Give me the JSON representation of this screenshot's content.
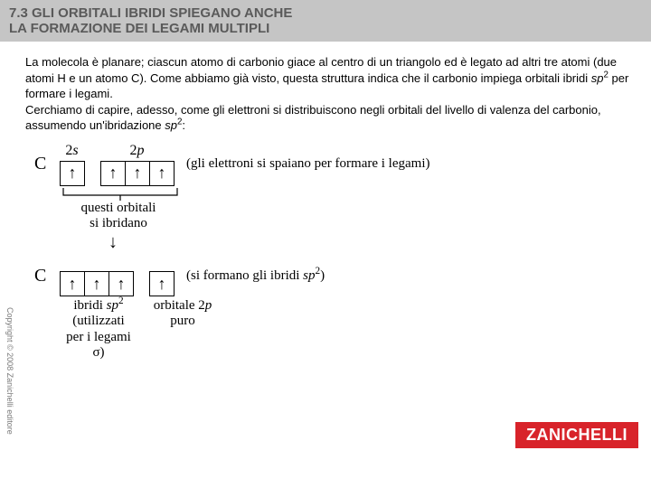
{
  "header": {
    "title_line1": "7.3 GLI ORBITALI IBRIDI SPIEGANO ANCHE",
    "title_line2": "LA FORMAZIONE DEI LEGAMI MULTIPLI"
  },
  "paragraph": {
    "p1": "La molecola è planare; ciascun atomo di carbonio giace al centro di un triangolo ed è legato ad altri tre atomi (due atomi H e un atomo C). Come abbiamo già visto, questa struttura indica che il carbonio impiega orbitali ibridi ",
    "sp2_a": "sp",
    "exp_a": "2",
    "p2": " per formare i legami.",
    "p3": "Cerchiamo di capire, adesso, come gli elettroni si distribuiscono negli orbitali del livello di valenza del carbonio, assumendo un'ibridazione ",
    "sp2_b": "sp",
    "exp_b": "2",
    "p4": ":"
  },
  "diagram": {
    "row1": {
      "atom": "C",
      "label_2s": "2s",
      "label_2p": "2p",
      "box_2s": "↑",
      "box_2p1": "↑",
      "box_2p2": "↑",
      "box_2p3": "↑",
      "note": "(gli elettroni si spaiano per formare i legami)"
    },
    "bracket_caption1": "questi orbitali",
    "bracket_caption2": "si ibridano",
    "row2": {
      "atom": "C",
      "box_h1": "↑",
      "box_h2": "↑",
      "box_h3": "↑",
      "box_p": "↑",
      "note_a": "(si formano gli ibridi ",
      "note_sp": "sp",
      "note_exp": "2",
      "note_b": ")"
    },
    "under": {
      "col1_l1": "ibridi ",
      "col1_sp": "sp",
      "col1_exp": "2",
      "col1_l2": "(utilizzati",
      "col1_l3": "per i legami σ)",
      "col2_l1": "orbitale 2",
      "col2_p": "p",
      "col2_l2": "puro"
    }
  },
  "copyright": "Copyright © 2008 Zanichelli editore",
  "logo": "ZANICHELLI",
  "colors": {
    "header_bg": "#c5c5c5",
    "header_text": "#5a5a5a",
    "logo_bg": "#d8232a"
  }
}
